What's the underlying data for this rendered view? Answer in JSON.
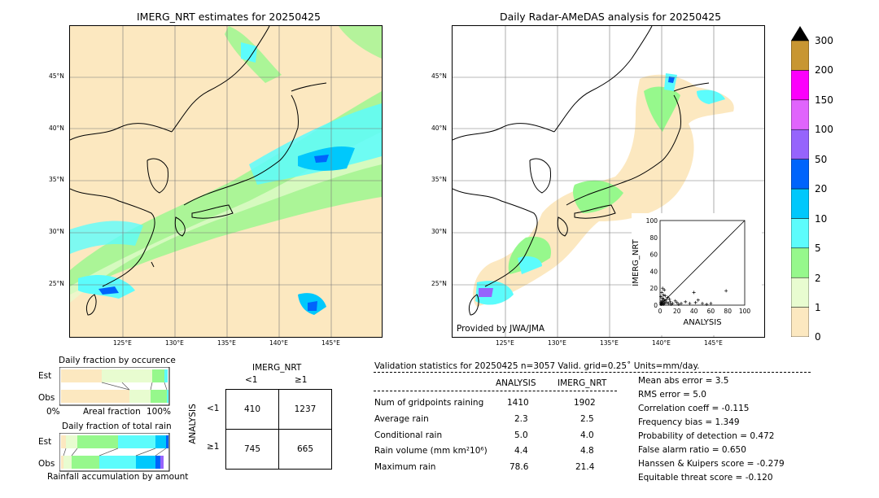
{
  "left_map": {
    "title": "IMERG_NRT estimates for 20250425",
    "lat_ticks": [
      "45°N",
      "40°N",
      "35°N",
      "30°N",
      "25°N"
    ],
    "lon_ticks": [
      "125°E",
      "130°E",
      "135°E",
      "140°E",
      "145°E"
    ]
  },
  "right_map": {
    "title": "Daily Radar-AMeDAS analysis for 20250425",
    "lat_ticks": [
      "45°N",
      "40°N",
      "35°N",
      "30°N",
      "25°N"
    ],
    "lon_ticks": [
      "125°E",
      "130°E",
      "135°E",
      "140°E",
      "145°E"
    ],
    "credit": "Provided by JWA/JMA"
  },
  "colorbar": {
    "levels": [
      "0",
      "1",
      "2",
      "5",
      "10",
      "20",
      "50",
      "100",
      "150",
      "200",
      "300"
    ],
    "colors": [
      "#fce8c0",
      "#e8fcd0",
      "#96f88c",
      "#5cfcfc",
      "#00c8fc",
      "#0064fc",
      "#9664fc",
      "#e064fc",
      "#fc00fc",
      "#c89632"
    ]
  },
  "fraction_charts": {
    "occurrence_title": "Daily fraction by occurence",
    "amount_title": "Daily fraction of total rain",
    "est_label": "Est",
    "obs_label": "Obs",
    "axis_left": "0%",
    "axis_mid": "Areal fraction",
    "axis_right": "100%",
    "amount_axis": "Rainfall accumulation by amount"
  },
  "contingency": {
    "col_title": "IMERG_NRT",
    "col_lt": "<1",
    "col_ge": "≥1",
    "row_title": "ANALYSIS",
    "row_lt": "<1",
    "row_ge": "≥1",
    "cells": [
      "410",
      "1237",
      "745",
      "665"
    ]
  },
  "validation": {
    "header": "Validation statistics for 20250425  n=3057 Valid. grid=0.25˚ Units=mm/day.",
    "col_analysis": "ANALYSIS",
    "col_imerg": "IMERG_NRT",
    "rows": [
      {
        "label": "Num of gridpoints raining",
        "analysis": "1410",
        "imerg": "1902"
      },
      {
        "label": "Average rain",
        "analysis": "2.3",
        "imerg": "2.5"
      },
      {
        "label": "Conditional rain",
        "analysis": "5.0",
        "imerg": "4.0"
      },
      {
        "label": "Rain volume (mm km²10⁶)",
        "analysis": "4.4",
        "imerg": "4.8"
      },
      {
        "label": "Maximum rain",
        "analysis": "78.6",
        "imerg": "21.4"
      }
    ],
    "scores": [
      "Mean abs error =    3.5",
      "RMS error =    5.0",
      "Correlation coeff = -0.115",
      "Frequency bias =  1.349",
      "Probability of detection =  0.472",
      "False alarm ratio =  0.650",
      "Hanssen & Kuipers score = -0.279",
      "Equitable threat score = -0.120"
    ]
  },
  "chart_data": {
    "type": "scatter",
    "title": "",
    "xlabel": "ANALYSIS",
    "ylabel": "IMERG_NRT",
    "xlim": [
      0,
      100
    ],
    "ylim": [
      0,
      100
    ],
    "ticks": [
      "0",
      "20",
      "40",
      "60",
      "80",
      "100"
    ],
    "points": [
      [
        2,
        1
      ],
      [
        3,
        2
      ],
      [
        1,
        3
      ],
      [
        4,
        1
      ],
      [
        5,
        2
      ],
      [
        6,
        3
      ],
      [
        2,
        5
      ],
      [
        3,
        8
      ],
      [
        1,
        10
      ],
      [
        4,
        12
      ],
      [
        2,
        15
      ],
      [
        5,
        18
      ],
      [
        3,
        20
      ],
      [
        8,
        3
      ],
      [
        10,
        2
      ],
      [
        12,
        4
      ],
      [
        15,
        2
      ],
      [
        18,
        5
      ],
      [
        20,
        3
      ],
      [
        22,
        1
      ],
      [
        25,
        2
      ],
      [
        30,
        4
      ],
      [
        35,
        2
      ],
      [
        40,
        15
      ],
      [
        42,
        3
      ],
      [
        45,
        6
      ],
      [
        50,
        2
      ],
      [
        55,
        1
      ],
      [
        60,
        2
      ],
      [
        78,
        17
      ],
      [
        7,
        6
      ],
      [
        9,
        9
      ],
      [
        11,
        7
      ],
      [
        13,
        1
      ],
      [
        6,
        11
      ],
      [
        4,
        7
      ],
      [
        1,
        1
      ],
      [
        2,
        2
      ],
      [
        3,
        4
      ],
      [
        5,
        5
      ]
    ]
  }
}
